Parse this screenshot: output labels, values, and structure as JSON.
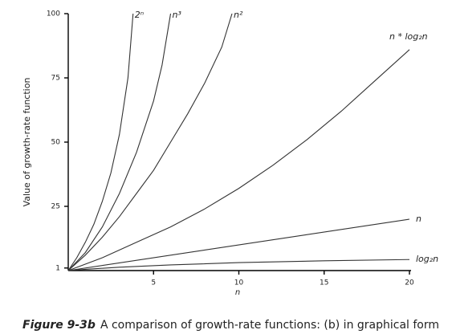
{
  "chart_data": {
    "type": "line",
    "y_label": "Value of growth-rate function",
    "x_label": "n",
    "caption_label": "Figure 9-3b",
    "caption_text": "A comparison of growth-rate functions: (b) in graphical form",
    "xlim": [
      0,
      20
    ],
    "xticks": [
      5,
      10,
      15,
      20
    ],
    "ylim": [
      0,
      100
    ],
    "yticks": [
      1,
      25,
      50,
      75,
      100
    ],
    "series": [
      {
        "name": "2ⁿ",
        "color": "#333333",
        "x": [
          0,
          0.5,
          1,
          1.5,
          2,
          2.5,
          3,
          3.5,
          3.8
        ],
        "values": [
          0,
          5,
          11,
          18,
          27,
          38,
          53,
          75,
          100
        ]
      },
      {
        "name": "n³",
        "color": "#333333",
        "x": [
          0,
          1,
          2,
          3,
          4,
          5,
          5.5,
          6
        ],
        "values": [
          0,
          7,
          17,
          30,
          46,
          66,
          80,
          100
        ]
      },
      {
        "name": "n²",
        "color": "#333333",
        "x": [
          0,
          1,
          2,
          3,
          4,
          5,
          6,
          7,
          8,
          9,
          9.6
        ],
        "values": [
          0,
          6,
          13,
          21,
          30,
          39,
          50,
          61,
          73,
          87,
          100
        ]
      },
      {
        "name": "n * log₂n",
        "color": "#333333",
        "x": [
          0,
          2,
          4,
          6,
          8,
          10,
          12,
          14,
          16,
          18,
          20
        ],
        "values": [
          0,
          5,
          11,
          17,
          24,
          32,
          41,
          51,
          62,
          74,
          86
        ]
      },
      {
        "name": "n",
        "color": "#333333",
        "x": [
          0,
          20
        ],
        "values": [
          0,
          20
        ]
      },
      {
        "name": "log₂n",
        "color": "#333333",
        "x": [
          0,
          1,
          3,
          6,
          10,
          15,
          20
        ],
        "values": [
          0,
          0.5,
          1.3,
          2.2,
          3.1,
          3.8,
          4.3
        ]
      }
    ]
  }
}
